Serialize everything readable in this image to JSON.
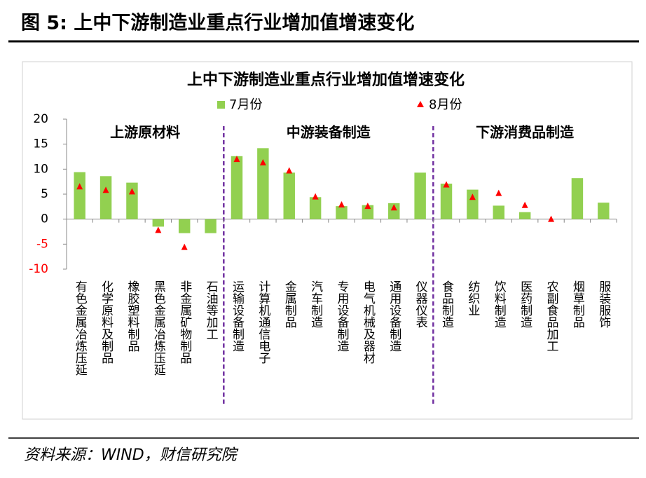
{
  "header": {
    "title": "图 5:  上中下游制造业重点行业增加值增速变化"
  },
  "chart_data": {
    "type": "bar_marker",
    "title": "上中下游制造业重点行业增加值增速变化",
    "groups": [
      "上游原材料",
      "中游装备制造",
      "下游消费品制造"
    ],
    "categories": [
      "有色金属冶炼压延",
      "化学原料及制品",
      "橡胶塑料制品",
      "黑色金属冶炼压延",
      "非金属矿物制品",
      "石油等加工",
      "运输设备制造",
      "计算机通信电子",
      "金属制品",
      "汽车制造",
      "专用设备制造",
      "电气机械及器材",
      "通用设备制造",
      "仪器仪表",
      "食品制造",
      "纺织业",
      "饮料制造",
      "医药制造",
      "农副食品加工",
      "烟草制品",
      "服装服饰"
    ],
    "series": [
      {
        "name": "7月份",
        "color": "#92d050",
        "values": [
          9.4,
          8.6,
          7.3,
          -1.5,
          -2.8,
          -2.8,
          12.6,
          14.2,
          9.3,
          4.4,
          2.6,
          2.8,
          3.2,
          9.3,
          7.1,
          5.9,
          2.7,
          1.4,
          0,
          8.2,
          3.3
        ]
      },
      {
        "name": "8月份",
        "color": "#ff0000",
        "values": [
          6.5,
          5.8,
          5.5,
          -2.2,
          -5.6,
          null,
          12.0,
          11.3,
          9.7,
          4.5,
          2.9,
          2.6,
          2.3,
          null,
          6.9,
          4.4,
          5.2,
          2.8,
          0,
          null,
          null
        ]
      }
    ],
    "ylim": [
      -10,
      20
    ],
    "yticks": [
      -10,
      -5,
      0,
      5,
      10,
      15,
      20
    ],
    "grid": false
  },
  "footer": {
    "source": "资料来源：WIND，财信研究院"
  }
}
